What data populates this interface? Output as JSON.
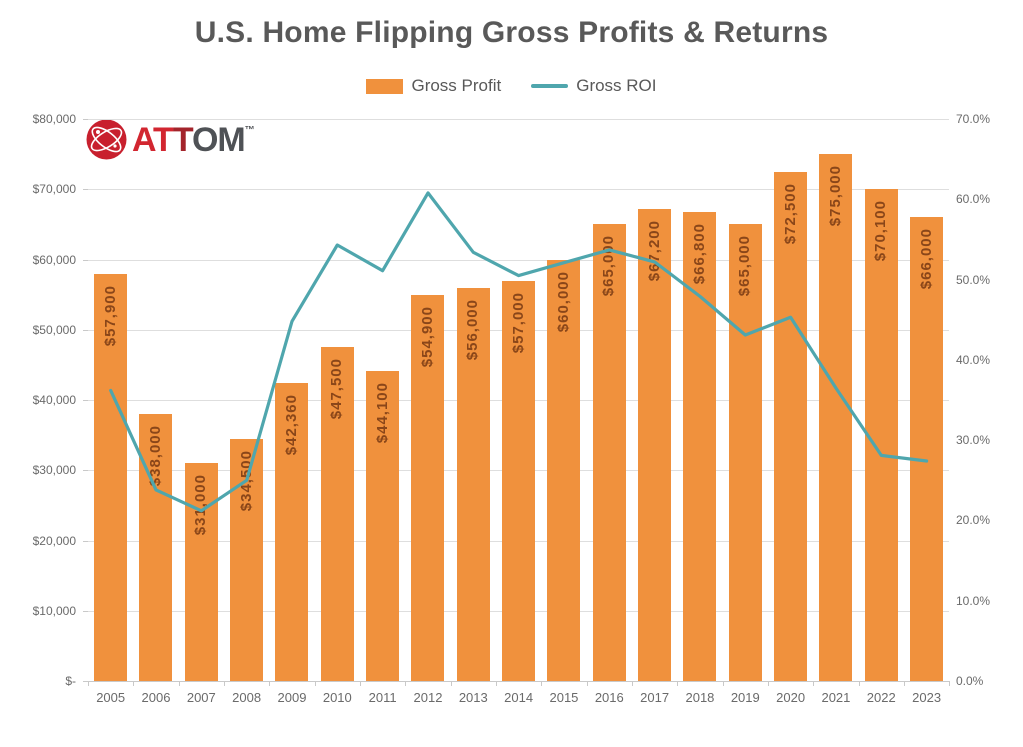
{
  "title": "U.S. Home Flipping Gross Profits & Returns",
  "legend": {
    "items": [
      {
        "label": "Gross Profit",
        "swatch": "bar-swatch"
      },
      {
        "label": "Gross ROI",
        "swatch": "line-swatch"
      }
    ]
  },
  "logo": {
    "part_a": "A",
    "part_t1": "T",
    "part_t2": "T",
    "part_om": "OM",
    "trademark": "™"
  },
  "colors": {
    "bar": "#F0913D",
    "bar_label": "#8A4619",
    "line": "#4FA6AD",
    "grid": "#DEDEDE",
    "axis_text": "#6A6A6A",
    "title_text": "#595959",
    "logo_red": "#D22630",
    "logo_dark_red": "#A3242B",
    "logo_gray": "#4F5256",
    "logo_circle": "#C8202E"
  },
  "chart_data": {
    "type": "bar",
    "title": "U.S. Home Flipping Gross Profits & Returns",
    "categories": [
      "2005",
      "2006",
      "2007",
      "2008",
      "2009",
      "2010",
      "2011",
      "2012",
      "2013",
      "2014",
      "2015",
      "2016",
      "2017",
      "2018",
      "2019",
      "2020",
      "2021",
      "2022",
      "2023"
    ],
    "series": [
      {
        "name": "Gross Profit",
        "type": "bar",
        "axis": "left",
        "color": "#F0913D",
        "values": [
          57900,
          38000,
          31000,
          34500,
          42360,
          47500,
          44100,
          54900,
          56000,
          57000,
          60000,
          65000,
          67200,
          66800,
          65000,
          72500,
          75000,
          70100,
          66000
        ],
        "labels": [
          "$57,900",
          "$38,000",
          "$31,000",
          "$34,500",
          "$42,360",
          "$47,500",
          "$44,100",
          "$54,900",
          "$56,000",
          "$57,000",
          "$60,000",
          "$65,000",
          "$67,200",
          "$66,800",
          "$65,000",
          "$72,500",
          "$75,000",
          "$70,100",
          "$66,000"
        ]
      },
      {
        "name": "Gross ROI",
        "type": "line",
        "axis": "right",
        "color": "#4FA6AD",
        "values": [
          36.2,
          23.8,
          21.2,
          25.0,
          44.8,
          54.3,
          51.1,
          60.8,
          53.4,
          50.5,
          52.1,
          53.7,
          52.2,
          47.9,
          43.1,
          45.3,
          36.5,
          28.1,
          27.4
        ]
      }
    ],
    "left_axis": {
      "ticks": [
        "$80,000",
        "$70,000",
        "$60,000",
        "$50,000",
        "$40,000",
        "$30,000",
        "$20,000",
        "$10,000",
        "$-"
      ],
      "min": 0,
      "max": 80000
    },
    "right_axis": {
      "ticks": [
        "70.0%",
        "60.0%",
        "50.0%",
        "40.0%",
        "30.0%",
        "20.0%",
        "10.0%",
        "0.0%"
      ],
      "min": 0,
      "max": 70
    },
    "grid": true,
    "legend_position": "top",
    "xlabel": "",
    "ylabel": ""
  }
}
